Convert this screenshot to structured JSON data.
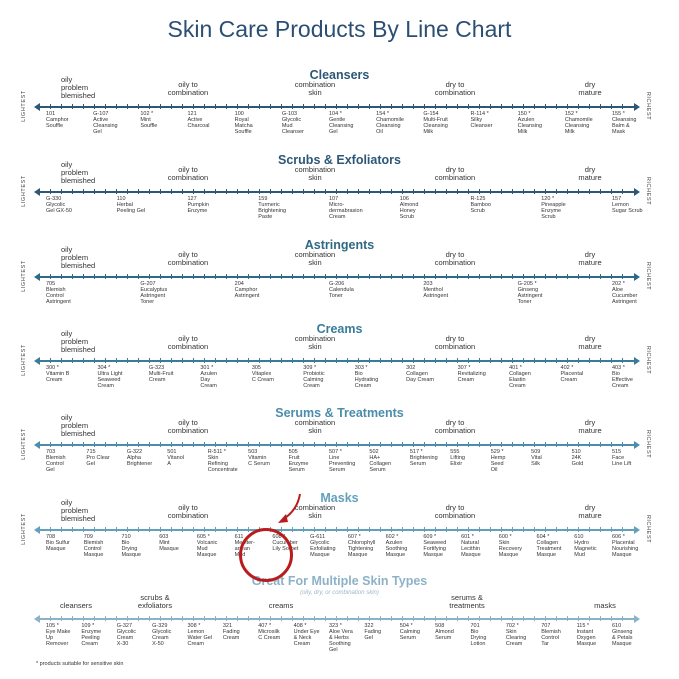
{
  "title": "Skin Care Products By Line Chart",
  "labels": {
    "lightest": "LIGHTEST",
    "richest": "RICHEST",
    "oily_problem": "oily\nproblem\nblemished",
    "oily_combo": "oily to\ncombination",
    "combo": "combination\nskin",
    "dry_combo": "dry to\ncombination",
    "dry_mature": "dry\nmature"
  },
  "sections": [
    {
      "title": "Cleansers",
      "color": "#2c5777",
      "products": [
        {
          "id": "101",
          "text": "101\nCamphor\nSouffle"
        },
        {
          "id": "G-107",
          "text": "G-107\nActive\nCleansing\nGel"
        },
        {
          "id": "102*",
          "text": "102 *\nMint\nSouffle"
        },
        {
          "id": "121",
          "text": "121\nActive\nCharcoal"
        },
        {
          "id": "100",
          "text": "100\nRoyal\nMatcha\nSouffle"
        },
        {
          "id": "G-103",
          "text": "G-103\nGlycolic\nMud\nCleanser"
        },
        {
          "id": "104*",
          "text": "104 *\nGentle\nCleansing\nGel"
        },
        {
          "id": "154*",
          "text": "154 *\nChamomile\nCleansing\nOil"
        },
        {
          "id": "G-154",
          "text": "G-154\nMulti-Fruit\nCleansing\nMilk"
        },
        {
          "id": "R-114*",
          "text": "R-114 *\nSilky\nCleanser"
        },
        {
          "id": "150*",
          "text": "150 *\nAzulen\nCleansing\nMilk"
        },
        {
          "id": "152*",
          "text": "152 *\nChamomile\nCleansing\nMilk"
        },
        {
          "id": "155*",
          "text": "155 *\nCleansing\nBalm &\nMask"
        }
      ]
    },
    {
      "title": "Scrubs & Exfoliators",
      "color": "#2c5777",
      "products": [
        {
          "id": "G-330",
          "text": "G-330\nGlycolic\nGel GX-50"
        },
        {
          "id": "110",
          "text": "110\nHerbal\nPeeling Gel"
        },
        {
          "id": "127",
          "text": "127\nPumpkin\nEnzyme"
        },
        {
          "id": "159",
          "text": "159\nTurmeric\nBrightening\nPaste"
        },
        {
          "id": "107",
          "text": "107\nMicro-\ndermabrasion\nCream"
        },
        {
          "id": "106",
          "text": "106\nAlmond\nHoney\nScrub"
        },
        {
          "id": "R-125",
          "text": "R-125\nBamboo\nScrub"
        },
        {
          "id": "120*",
          "text": "120 *\nPineapple\nEnzyme\nScrub"
        },
        {
          "id": "157",
          "text": "157\nLemon\nSugar Scrub"
        }
      ]
    },
    {
      "title": "Astringents",
      "color": "#2e6a86",
      "products": [
        {
          "id": "705",
          "text": "705\nBlemish\nControl\nAstringent"
        },
        {
          "id": "G-207",
          "text": "G-207\nEucalyptus\nAstringent\nToner"
        },
        {
          "id": "204",
          "text": "204\nCamphor\nAstringent"
        },
        {
          "id": "G-206",
          "text": "G-206\nCalendula\nToner"
        },
        {
          "id": "203",
          "text": "203\nMenthol\nAstringent"
        },
        {
          "id": "G-205*",
          "text": "G-205 *\nGinseng\nAstringent\nToner"
        },
        {
          "id": "202*",
          "text": "202 *\nAloe\nCucumber\nAstringent"
        }
      ]
    },
    {
      "title": "Creams",
      "color": "#3a7c98",
      "products": [
        {
          "id": "300*",
          "text": "300 *\nVitamin B\nCream"
        },
        {
          "id": "304*",
          "text": "304 *\nUltra Light\nSeaweed\nCream"
        },
        {
          "id": "G-323",
          "text": "G-323\nMulti-Fruit\nCream"
        },
        {
          "id": "301*",
          "text": "301 *\nAzulen\nDay\nCream"
        },
        {
          "id": "305",
          "text": "305\nVitaplex\nC Cream"
        },
        {
          "id": "309*",
          "text": "309 *\nProbiotic\nCalming\nCream"
        },
        {
          "id": "303*",
          "text": "303 *\nBio\nHydrating\nCream"
        },
        {
          "id": "302",
          "text": "302\nCollagen\nDay Cream"
        },
        {
          "id": "307*",
          "text": "307 *\nRevitalizing\nCream"
        },
        {
          "id": "401*",
          "text": "401 *\nCollagen\nElastin\nCream"
        },
        {
          "id": "402*",
          "text": "402 *\nPlacental\nCream"
        },
        {
          "id": "403*",
          "text": "403 *\nBio\nEffective\nCream"
        }
      ]
    },
    {
      "title": "Serums & Treatments",
      "color": "#4b8daa",
      "products": [
        {
          "id": "703",
          "text": "703\nBlemish\nControl\nGel"
        },
        {
          "id": "715",
          "text": "715\nPro Clear\nGel"
        },
        {
          "id": "G-322",
          "text": "G-322\nAlpha\nBrightener"
        },
        {
          "id": "501",
          "text": "501\nVitanol\nA"
        },
        {
          "id": "R-511*",
          "text": "R-511 *\nSkin\nRefining\nConcentrate"
        },
        {
          "id": "503",
          "text": "503\nVitamin\nC Serum"
        },
        {
          "id": "505",
          "text": "505\nFruit\nEnzyme\nSerum"
        },
        {
          "id": "507*",
          "text": "507 *\nLine\nPreventing\nSerum"
        },
        {
          "id": "502",
          "text": "502\nHA+\nCollagen\nSerum"
        },
        {
          "id": "517*",
          "text": "517 *\nBrightening\nSerum"
        },
        {
          "id": "555",
          "text": "555\nLifting\nElixir"
        },
        {
          "id": "529*",
          "text": "529 *\nHemp\nSeed\nOil"
        },
        {
          "id": "509",
          "text": "509\nVital\nSilk"
        },
        {
          "id": "510",
          "text": "510\n24K\nGold"
        },
        {
          "id": "515",
          "text": "515\nFace\nLine Lift"
        }
      ]
    },
    {
      "title": "Masks",
      "color": "#62a0bb",
      "products": [
        {
          "id": "708",
          "text": "708\nBio Sulfur\nMasque"
        },
        {
          "id": "709",
          "text": "709\nBlemish\nControl\nMasque"
        },
        {
          "id": "710",
          "text": "710\nBio\nDrying\nMasque"
        },
        {
          "id": "603",
          "text": "603\nMint\nMasque"
        },
        {
          "id": "605*",
          "text": "605 *\nVolcanic\nMud\nMasque"
        },
        {
          "id": "611",
          "text": "611\nMediter-\nanean\nMud"
        },
        {
          "id": "608*",
          "text": "608 *\nCucumber\nLily Sorbet"
        },
        {
          "id": "G-611",
          "text": "G-611\nGlycolic\nExfoliating\nMasque"
        },
        {
          "id": "607*",
          "text": "607 *\nChlorophyll\nTightening\nMasque"
        },
        {
          "id": "602*",
          "text": "602 *\nAzulen\nSoothing\nMasque"
        },
        {
          "id": "609*",
          "text": "609 *\nSeaweed\nFortifying\nMasque"
        },
        {
          "id": "601*",
          "text": "601 *\nNatural\nLecithin\nMasque"
        },
        {
          "id": "600*",
          "text": "600 *\nSkin\nRecovery\nMasque"
        },
        {
          "id": "604*",
          "text": "604 *\nCollagen\nTreatment\nMasque"
        },
        {
          "id": "610",
          "text": "610\nHydro\nMagnetic\nMud"
        },
        {
          "id": "606*",
          "text": "606 *\nPlacental\nNourishing\nMasque"
        }
      ]
    }
  ],
  "multi": {
    "title": "Great For Multiple Skin Types",
    "subtitle": "(oily, dry, or combination skin)",
    "color": "#8db2c8",
    "bands": [
      "cleansers",
      "scrubs &\nexfoliators",
      "creams",
      "serums &\ntreatments",
      "masks"
    ],
    "products": [
      {
        "id": "105",
        "text": "105 *\nEye Make\nUp\nRemover"
      },
      {
        "id": "109",
        "text": "109 *\nEnzyme\nPeeling\nCream"
      },
      {
        "id": "G-327",
        "text": "G-327\nGlycolic\nCream\nX-30"
      },
      {
        "id": "G-329",
        "text": "G-329\nGlycolic\nCream\nX-50"
      },
      {
        "id": "308",
        "text": "308 *\nLemon\nWater Gel\nCream"
      },
      {
        "id": "321",
        "text": "321\nFading\nCream"
      },
      {
        "id": "407",
        "text": "407 *\nMicrosilk\nC Cream"
      },
      {
        "id": "408",
        "text": "408 *\nUnder Eye\n& Neck\nCream"
      },
      {
        "id": "323",
        "text": "323 *\nAloe Vera\n& Herbs\nSoothing\nGel"
      },
      {
        "id": "322",
        "text": "322\nFading\nGel"
      },
      {
        "id": "504",
        "text": "504 *\nCalming\nSerum"
      },
      {
        "id": "508",
        "text": "508\nAlmond\nSerum"
      },
      {
        "id": "701",
        "text": "701\nBio\nDrying\nLotion"
      },
      {
        "id": "702",
        "text": "702 *\nSkin\nClearing\nCream"
      },
      {
        "id": "707",
        "text": "707\nBlemish\nControl\nTar"
      },
      {
        "id": "115",
        "text": "115 *\nInstant\nOxygen\nMasque"
      },
      {
        "id": "610m",
        "text": "610\nGinseng\n& Petals\nMasque"
      }
    ]
  },
  "footnote": "* products suitable for sensitive skin"
}
